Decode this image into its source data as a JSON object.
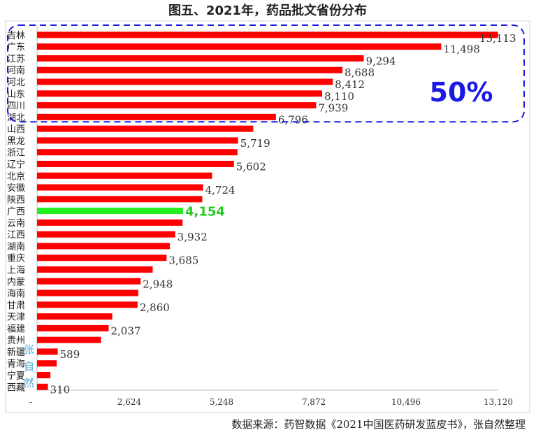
{
  "chart_data": {
    "type": "bar",
    "orientation": "horizontal",
    "title": "图五、2021年，药品批文省份分布",
    "categories": [
      "吉林",
      "广东",
      "江苏",
      "河南",
      "河北",
      "山东",
      "四川",
      "湖北",
      "山西",
      "黑龙",
      "浙江",
      "辽宁",
      "北京",
      "安徽",
      "陕西",
      "广西",
      "云南",
      "江西",
      "湖南",
      "重庆",
      "上海",
      "内蒙",
      "海南",
      "甘肃",
      "天津",
      "福建",
      "贵州",
      "新疆",
      "青海",
      "宁夏",
      "西藏"
    ],
    "values": [
      13113,
      11498,
      9294,
      8688,
      8412,
      8110,
      7939,
      6796,
      6150,
      5719,
      5700,
      5602,
      4980,
      4724,
      4700,
      4154,
      4140,
      3932,
      3780,
      3685,
      3290,
      2948,
      2880,
      2860,
      2140,
      2037,
      1820,
      589,
      560,
      380,
      310
    ],
    "data_labels": {
      "吉林": "13,113",
      "广东": "11,498",
      "江苏": "9,294",
      "河南": "8,688",
      "河北": "8,412",
      "山东": "8,110",
      "四川": "7,939",
      "湖北": "6,796",
      "黑龙": "5,719",
      "辽宁": "5,602",
      "安徽": "4,724",
      "广西": "4,154",
      "江西": "3,932",
      "重庆": "3,685",
      "内蒙": "2,948",
      "甘肃": "2,860",
      "福建": "2,037",
      "新疆": "589",
      "西藏": "310"
    },
    "highlight_category": "广西",
    "colors": {
      "bar": "#ff0000",
      "highlight": "#22ee22",
      "highlight_label": "#22cc22",
      "group_box": "#1a1ae6"
    },
    "xlim": [
      0,
      13120
    ],
    "x_ticks": [
      "-",
      "2,624",
      "5,248",
      "7,872",
      "10,496",
      "13,120"
    ],
    "x_tick_values": [
      0,
      2624,
      5248,
      7872,
      10496,
      13120
    ],
    "grid": false,
    "group_box": {
      "categories": [
        "吉林",
        "广东",
        "江苏",
        "河南",
        "河北",
        "山东",
        "四川",
        "湖北"
      ],
      "label": "50%"
    }
  },
  "source_note": "数据来源：药智数据《2021中国医药研发蓝皮书》，张自然整理",
  "watermark": [
    "张",
    "自",
    "然"
  ]
}
